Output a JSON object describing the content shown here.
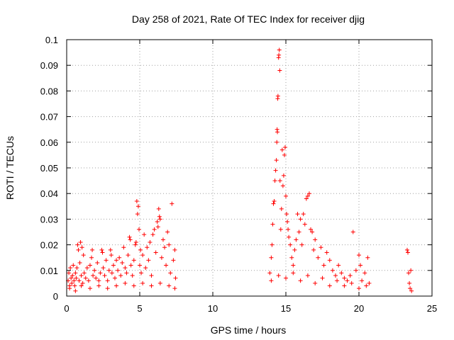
{
  "chart_data": {
    "type": "scatter",
    "title": "Day 258 of 2021, Rate Of TEC Index for receiver djig",
    "xlabel": "GPS time / hours",
    "ylabel": "ROTI / TECUs",
    "xlim": [
      0,
      25
    ],
    "ylim": [
      0,
      0.1
    ],
    "xticks": [
      0,
      5,
      10,
      15,
      20,
      25
    ],
    "xtick_labels": [
      "0",
      "5",
      "10",
      "15",
      "20",
      "25"
    ],
    "yticks": [
      0,
      0.01,
      0.02,
      0.03,
      0.04,
      0.05,
      0.06,
      0.07,
      0.08,
      0.09,
      0.1
    ],
    "ytick_labels": [
      "0",
      "0.01",
      "0.02",
      "0.03",
      "0.04",
      "0.05",
      "0.06",
      "0.07",
      "0.08",
      "0.09",
      "0.1"
    ],
    "grid": true,
    "marker": "+",
    "marker_color": "#ff0000",
    "series": [
      {
        "name": "ROTI",
        "points": [
          [
            0.1,
            0.006
          ],
          [
            0.15,
            0.009
          ],
          [
            0.2,
            0.004
          ],
          [
            0.25,
            0.011
          ],
          [
            0.3,
            0.007
          ],
          [
            0.35,
            0.005
          ],
          [
            0.4,
            0.008
          ],
          [
            0.45,
            0.012
          ],
          [
            0.5,
            0.006
          ],
          [
            0.55,
            0.004
          ],
          [
            0.6,
            0.009
          ],
          [
            0.65,
            0.007
          ],
          [
            0.7,
            0.011
          ],
          [
            0.75,
            0.02
          ],
          [
            0.8,
            0.018
          ],
          [
            0.85,
            0.006
          ],
          [
            0.9,
            0.013
          ],
          [
            0.95,
            0.021
          ],
          [
            1.0,
            0.008
          ],
          [
            1.05,
            0.019
          ],
          [
            1.1,
            0.005
          ],
          [
            1.15,
            0.016
          ],
          [
            1.2,
            0.009
          ],
          [
            1.3,
            0.007
          ],
          [
            1.4,
            0.011
          ],
          [
            1.5,
            0.006
          ],
          [
            1.6,
            0.012
          ],
          [
            1.7,
            0.015
          ],
          [
            1.75,
            0.018
          ],
          [
            1.8,
            0.008
          ],
          [
            1.9,
            0.01
          ],
          [
            2.0,
            0.007
          ],
          [
            2.1,
            0.013
          ],
          [
            2.2,
            0.006
          ],
          [
            2.3,
            0.009
          ],
          [
            2.4,
            0.018
          ],
          [
            2.45,
            0.017
          ],
          [
            2.5,
            0.011
          ],
          [
            2.6,
            0.008
          ],
          [
            2.7,
            0.014
          ],
          [
            2.8,
            0.006
          ],
          [
            2.9,
            0.01
          ],
          [
            3.0,
            0.018
          ],
          [
            3.05,
            0.016
          ],
          [
            3.1,
            0.009
          ],
          [
            3.2,
            0.012
          ],
          [
            3.3,
            0.007
          ],
          [
            3.4,
            0.014
          ],
          [
            3.5,
            0.01
          ],
          [
            3.6,
            0.015
          ],
          [
            3.7,
            0.008
          ],
          [
            3.8,
            0.013
          ],
          [
            3.9,
            0.019
          ],
          [
            4.0,
            0.011
          ],
          [
            4.1,
            0.009
          ],
          [
            4.2,
            0.016
          ],
          [
            4.3,
            0.023
          ],
          [
            4.35,
            0.022
          ],
          [
            4.4,
            0.012
          ],
          [
            4.5,
            0.008
          ],
          [
            4.6,
            0.014
          ],
          [
            4.7,
            0.02
          ],
          [
            4.75,
            0.021
          ],
          [
            4.8,
            0.037
          ],
          [
            4.85,
            0.032
          ],
          [
            4.9,
            0.035
          ],
          [
            4.95,
            0.026
          ],
          [
            5.0,
            0.012
          ],
          [
            5.05,
            0.018
          ],
          [
            5.1,
            0.009
          ],
          [
            5.2,
            0.016
          ],
          [
            5.3,
            0.024
          ],
          [
            5.4,
            0.011
          ],
          [
            5.5,
            0.019
          ],
          [
            5.6,
            0.014
          ],
          [
            5.7,
            0.021
          ],
          [
            5.8,
            0.008
          ],
          [
            5.9,
            0.024
          ],
          [
            6.0,
            0.026
          ],
          [
            6.1,
            0.017
          ],
          [
            6.2,
            0.029
          ],
          [
            6.25,
            0.027
          ],
          [
            6.3,
            0.034
          ],
          [
            6.35,
            0.031
          ],
          [
            6.4,
            0.03
          ],
          [
            6.5,
            0.015
          ],
          [
            6.6,
            0.022
          ],
          [
            6.7,
            0.019
          ],
          [
            6.8,
            0.012
          ],
          [
            6.9,
            0.025
          ],
          [
            7.0,
            0.02
          ],
          [
            7.1,
            0.009
          ],
          [
            7.2,
            0.036
          ],
          [
            7.3,
            0.014
          ],
          [
            7.4,
            0.018
          ],
          [
            7.45,
            0.007
          ],
          [
            0.2,
            0.003
          ],
          [
            0.6,
            0.002
          ],
          [
            1.0,
            0.004
          ],
          [
            1.6,
            0.003
          ],
          [
            2.2,
            0.004
          ],
          [
            2.8,
            0.003
          ],
          [
            3.4,
            0.004
          ],
          [
            4.0,
            0.005
          ],
          [
            4.6,
            0.004
          ],
          [
            5.2,
            0.005
          ],
          [
            5.8,
            0.004
          ],
          [
            6.4,
            0.005
          ],
          [
            7.0,
            0.004
          ],
          [
            7.4,
            0.003
          ],
          [
            13.9,
            0.009
          ],
          [
            14.0,
            0.015
          ],
          [
            14.05,
            0.02
          ],
          [
            14.1,
            0.028
          ],
          [
            14.15,
            0.036
          ],
          [
            14.2,
            0.037
          ],
          [
            14.25,
            0.045
          ],
          [
            14.3,
            0.049
          ],
          [
            14.35,
            0.053
          ],
          [
            14.38,
            0.06
          ],
          [
            14.4,
            0.065
          ],
          [
            14.42,
            0.064
          ],
          [
            14.44,
            0.077
          ],
          [
            14.46,
            0.078
          ],
          [
            14.5,
            0.093
          ],
          [
            14.52,
            0.094
          ],
          [
            14.55,
            0.096
          ],
          [
            14.58,
            0.088
          ],
          [
            14.6,
            0.045
          ],
          [
            14.65,
            0.026
          ],
          [
            14.7,
            0.034
          ],
          [
            14.75,
            0.057
          ],
          [
            14.8,
            0.043
          ],
          [
            14.85,
            0.047
          ],
          [
            14.9,
            0.055
          ],
          [
            14.95,
            0.058
          ],
          [
            15.0,
            0.039
          ],
          [
            15.05,
            0.032
          ],
          [
            15.1,
            0.029
          ],
          [
            15.15,
            0.026
          ],
          [
            15.2,
            0.023
          ],
          [
            15.3,
            0.02
          ],
          [
            15.4,
            0.015
          ],
          [
            15.5,
            0.012
          ],
          [
            15.6,
            0.018
          ],
          [
            15.7,
            0.022
          ],
          [
            15.8,
            0.032
          ],
          [
            15.9,
            0.025
          ],
          [
            16.0,
            0.03
          ],
          [
            16.1,
            0.02
          ],
          [
            16.2,
            0.032
          ],
          [
            16.3,
            0.028
          ],
          [
            16.4,
            0.038
          ],
          [
            16.5,
            0.039
          ],
          [
            16.6,
            0.04
          ],
          [
            16.7,
            0.026
          ],
          [
            16.8,
            0.025
          ],
          [
            16.9,
            0.018
          ],
          [
            17.0,
            0.022
          ],
          [
            17.2,
            0.015
          ],
          [
            17.4,
            0.019
          ],
          [
            17.6,
            0.012
          ],
          [
            17.8,
            0.017
          ],
          [
            18.0,
            0.014
          ],
          [
            18.2,
            0.01
          ],
          [
            18.4,
            0.008
          ],
          [
            18.6,
            0.012
          ],
          [
            18.8,
            0.009
          ],
          [
            19.0,
            0.007
          ],
          [
            19.2,
            0.006
          ],
          [
            19.4,
            0.008
          ],
          [
            19.6,
            0.025
          ],
          [
            19.8,
            0.01
          ],
          [
            20.0,
            0.016
          ],
          [
            20.1,
            0.012
          ],
          [
            20.2,
            0.006
          ],
          [
            20.4,
            0.009
          ],
          [
            20.6,
            0.015
          ],
          [
            20.7,
            0.005
          ],
          [
            23.3,
            0.018
          ],
          [
            23.35,
            0.017
          ],
          [
            23.4,
            0.009
          ],
          [
            23.45,
            0.005
          ],
          [
            23.5,
            0.003
          ],
          [
            23.55,
            0.01
          ],
          [
            23.6,
            0.002
          ],
          [
            14.0,
            0.006
          ],
          [
            14.5,
            0.008
          ],
          [
            15.0,
            0.007
          ],
          [
            15.5,
            0.009
          ],
          [
            16.0,
            0.006
          ],
          [
            16.5,
            0.008
          ],
          [
            17.0,
            0.005
          ],
          [
            17.5,
            0.007
          ],
          [
            18.0,
            0.004
          ],
          [
            18.5,
            0.006
          ],
          [
            19.0,
            0.004
          ],
          [
            19.5,
            0.005
          ],
          [
            20.0,
            0.003
          ],
          [
            20.5,
            0.004
          ]
        ]
      }
    ]
  }
}
